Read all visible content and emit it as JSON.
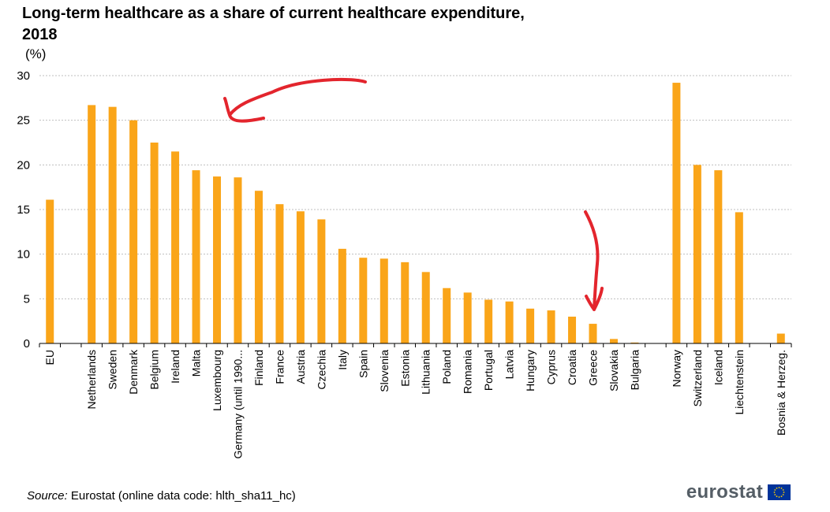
{
  "chart_data": {
    "type": "bar",
    "title_line1": "Long-term healthcare as a share of current healthcare expenditure,",
    "title_line2": "2018",
    "unit": "(%)",
    "xlabel": "",
    "ylabel": "(%)",
    "ylim": [
      0,
      30
    ],
    "yticks": [
      0,
      5,
      10,
      15,
      20,
      25,
      30
    ],
    "grid": true,
    "legend": "none",
    "bar_color": "#faa519",
    "grid_color": "#bfbfbf",
    "annotation_color": "#e3252d",
    "categories": [
      "EU",
      "",
      "Netherlands",
      "Sweden",
      "Denmark",
      "Belgium",
      "Ireland",
      "Malta",
      "Luxembourg",
      "Germany (until 1990...",
      "Finland",
      "France",
      "Austria",
      "Czechia",
      "Italy",
      "Spain",
      "Slovenia",
      "Estonia",
      "Lithuania",
      "Poland",
      "Romania",
      "Portugal",
      "Latvia",
      "Hungary",
      "Cyprus",
      "Croatia",
      "Greece",
      "Slovakia",
      "Bulgaria",
      "",
      "Norway",
      "Switzerland",
      "Iceland",
      "Liechtenstein",
      "",
      "Bosnia & Herzeg."
    ],
    "values": [
      16.1,
      null,
      26.7,
      26.5,
      25.0,
      22.5,
      21.5,
      19.4,
      18.7,
      18.6,
      17.1,
      15.6,
      14.8,
      13.9,
      10.6,
      9.6,
      9.5,
      9.1,
      8.0,
      6.2,
      5.7,
      4.9,
      4.7,
      3.9,
      3.7,
      3.0,
      2.2,
      0.5,
      0.1,
      null,
      29.2,
      20.0,
      19.4,
      14.7,
      null,
      1.1
    ]
  },
  "footer": {
    "source_label": "Source:",
    "source_text": "Eurostat (online data code: hlth_sha11_hc)",
    "brand": "eurostat"
  },
  "logo_colors": {
    "flag_blue": "#003399",
    "flag_stars": "#ffcc00"
  }
}
